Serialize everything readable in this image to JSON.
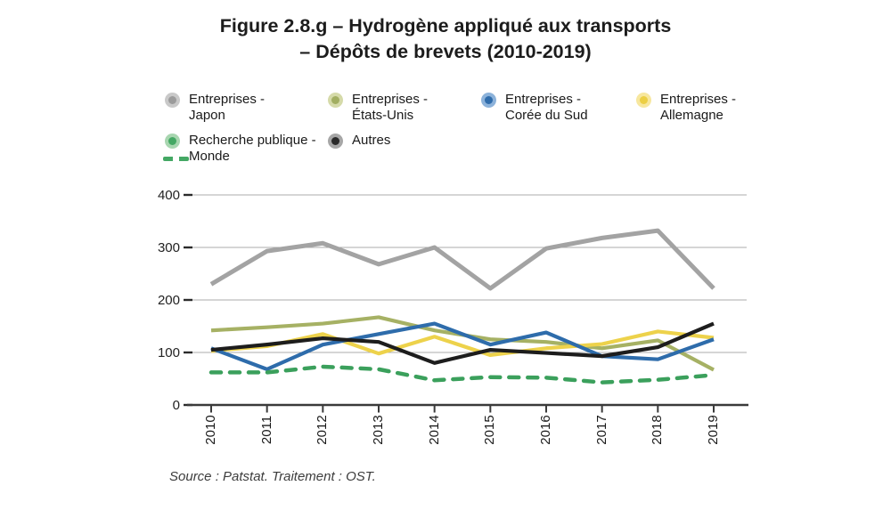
{
  "title": {
    "line1": "Figure 2.8.g – Hydrogène appliqué aux transports",
    "line2": "– Dépôts de brevets (2010-2019)"
  },
  "legend": {
    "items": [
      {
        "id": "japon",
        "line1": "Entreprises -",
        "line2": "Japon",
        "dot": "#9b9b9b",
        "halo": "#c9c9c9",
        "dash_sample": false
      },
      {
        "id": "etats-unis",
        "line1": "Entreprises -",
        "line2": "États-Unis",
        "dot": "#a2ae61",
        "halo": "#d5daa9",
        "dash_sample": false
      },
      {
        "id": "coree",
        "line1": "Entreprises -",
        "line2": "Corée du Sud",
        "dot": "#2f6cab",
        "halo": "#8cb2da",
        "dash_sample": false
      },
      {
        "id": "allemagne",
        "line1": "Entreprises -",
        "line2": "Allemagne",
        "dot": "#eccf44",
        "halo": "#f7e79e",
        "dash_sample": false
      },
      {
        "id": "recherche",
        "line1": "Recherche publique -",
        "line2": "Monde",
        "dot": "#44a864",
        "halo": "#a8d6b0",
        "dash_sample": true
      },
      {
        "id": "autres",
        "line1": "Autres",
        "line2": "",
        "dot": "#2a2a2a",
        "halo": "#a6a6a6",
        "dash_sample": false
      }
    ]
  },
  "chart_data": {
    "type": "line",
    "x": [
      2010,
      2011,
      2012,
      2013,
      2014,
      2015,
      2016,
      2017,
      2018,
      2019
    ],
    "series": [
      {
        "id": "japon",
        "name": "Entreprises - Japon",
        "color": "#a3a3a3",
        "width": 5,
        "dashed": false,
        "values": [
          230,
          293,
          308,
          268,
          300,
          222,
          298,
          318,
          332,
          222
        ]
      },
      {
        "id": "etats-unis",
        "name": "Entreprises - États-Unis",
        "color": "#a6b164",
        "width": 4.2,
        "dashed": false,
        "values": [
          142,
          148,
          155,
          167,
          142,
          125,
          120,
          108,
          123,
          67
        ]
      },
      {
        "id": "allemagne",
        "name": "Entreprises - Allemagne",
        "color": "#edd24b",
        "width": 4.2,
        "dashed": false,
        "values": [
          103,
          112,
          135,
          98,
          130,
          95,
          108,
          116,
          140,
          128
        ]
      },
      {
        "id": "coree",
        "name": "Entreprises - Corée du Sud",
        "color": "#2e6cab",
        "width": 4.2,
        "dashed": false,
        "values": [
          108,
          68,
          115,
          135,
          155,
          115,
          138,
          93,
          87,
          125
        ]
      },
      {
        "id": "recherche",
        "name": "Recherche publique - Monde",
        "color": "#3ba05c",
        "width": 4.5,
        "dashed": true,
        "values": [
          62,
          62,
          73,
          68,
          47,
          53,
          52,
          43,
          48,
          57
        ]
      },
      {
        "id": "autres",
        "name": "Autres",
        "color": "#1d1d1d",
        "width": 4.2,
        "dashed": false,
        "values": [
          105,
          115,
          127,
          120,
          80,
          105,
          99,
          93,
          110,
          155
        ]
      }
    ],
    "title": "Figure 2.8.g – Hydrogène appliqué aux transports – Dépôts de brevets (2010-2019)",
    "xlabel": "",
    "ylabel": "",
    "ylim": [
      0,
      400
    ],
    "y_ticks": [
      0,
      100,
      200,
      300,
      400
    ],
    "grid": true,
    "legend_position": "top-left"
  },
  "source": "Source : Patstat. Traitement : OST."
}
